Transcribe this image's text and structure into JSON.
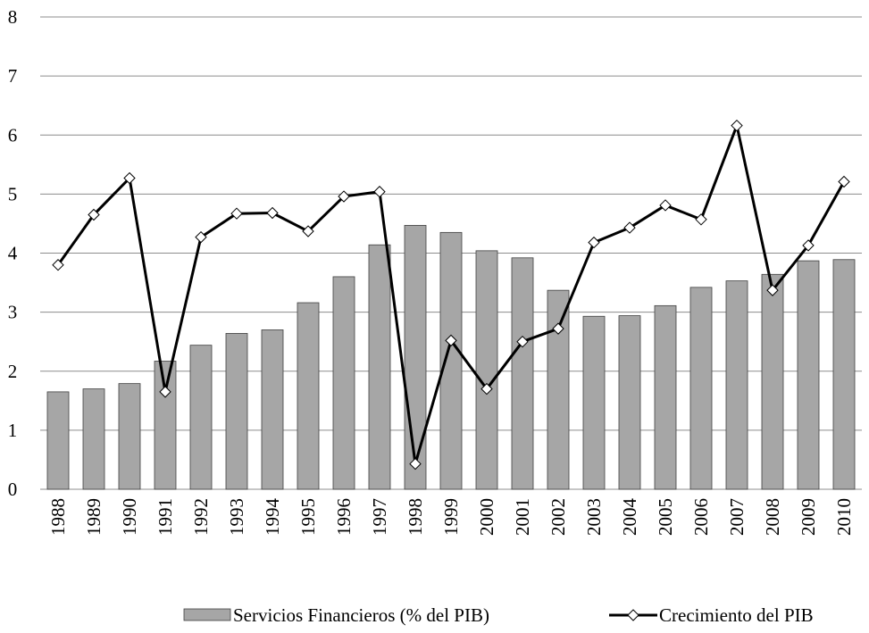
{
  "chart_data": {
    "type": "bar_line",
    "categories": [
      "1988",
      "1989",
      "1990",
      "1991",
      "1992",
      "1993",
      "1994",
      "1995",
      "1996",
      "1997",
      "1998",
      "1999",
      "2000",
      "2001",
      "2002",
      "2003",
      "2004",
      "2005",
      "2006",
      "2007",
      "2008",
      "2009",
      "2010"
    ],
    "series": [
      {
        "name": "Servicios Financieros (% del PIB)",
        "type": "bar",
        "color": "#a6a6a6",
        "values": [
          1.65,
          1.7,
          1.79,
          2.17,
          2.44,
          2.64,
          2.7,
          3.16,
          3.6,
          4.14,
          4.47,
          4.35,
          4.04,
          3.92,
          3.37,
          2.93,
          2.94,
          3.11,
          3.42,
          3.53,
          3.64,
          3.87,
          3.89
        ]
      },
      {
        "name": "Crecimiento del PIB",
        "type": "line",
        "color": "#000000",
        "values": [
          3.8,
          4.65,
          5.27,
          1.65,
          4.27,
          4.67,
          4.68,
          4.37,
          4.96,
          5.04,
          0.43,
          2.52,
          1.7,
          2.5,
          2.72,
          4.18,
          4.43,
          4.81,
          4.57,
          6.16,
          3.37,
          4.13,
          5.21
        ]
      }
    ],
    "ylim": [
      0,
      8
    ],
    "yticks": [
      0,
      1,
      2,
      3,
      4,
      5,
      6,
      7,
      8
    ],
    "grid": true,
    "legend": "bottom"
  }
}
